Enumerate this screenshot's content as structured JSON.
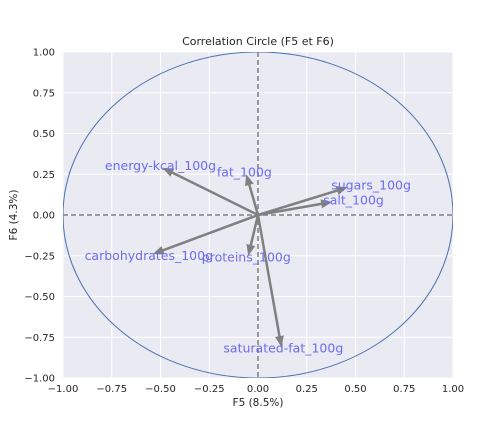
{
  "chart_data": {
    "type": "scatter",
    "subtype": "correlation-circle",
    "title": "Correlation Circle (F5 et F6)",
    "xlabel": "F5 (8.5%)",
    "ylabel": "F6 (4.3%)",
    "xlim": [
      -1.0,
      1.0
    ],
    "ylim": [
      -1.0,
      1.0
    ],
    "xticks": [
      "−1.00",
      "−0.75",
      "−0.50",
      "−0.25",
      "0.00",
      "0.25",
      "0.50",
      "0.75",
      "1.00"
    ],
    "yticks": [
      "−1.00",
      "−0.75",
      "−0.50",
      "−0.25",
      "0.00",
      "0.25",
      "0.50",
      "0.75",
      "1.00"
    ],
    "grid": true,
    "background_color": "#eaeaf2",
    "circle_color": "#4c72b0",
    "arrow_color": "#808080",
    "label_color": "#6c6cf0",
    "vectors": [
      {
        "name": "energy-kcal_100g",
        "x": -0.49,
        "y": 0.29,
        "label_x": -0.5,
        "label_y": 0.3
      },
      {
        "name": "fat_100g",
        "x": -0.06,
        "y": 0.25,
        "label_x": -0.07,
        "label_y": 0.26
      },
      {
        "name": "sugars_100g",
        "x": 0.46,
        "y": 0.17,
        "label_x": 0.58,
        "label_y": 0.18
      },
      {
        "name": "salt_100g",
        "x": 0.38,
        "y": 0.08,
        "label_x": 0.49,
        "label_y": 0.09
      },
      {
        "name": "carbohydrates_100g",
        "x": -0.54,
        "y": -0.24,
        "label_x": -0.56,
        "label_y": -0.25
      },
      {
        "name": "proteins_100g",
        "x": -0.05,
        "y": -0.25,
        "label_x": -0.06,
        "label_y": -0.26
      },
      {
        "name": "saturated-fat_100g",
        "x": 0.12,
        "y": -0.81,
        "label_x": 0.13,
        "label_y": -0.82
      }
    ]
  }
}
